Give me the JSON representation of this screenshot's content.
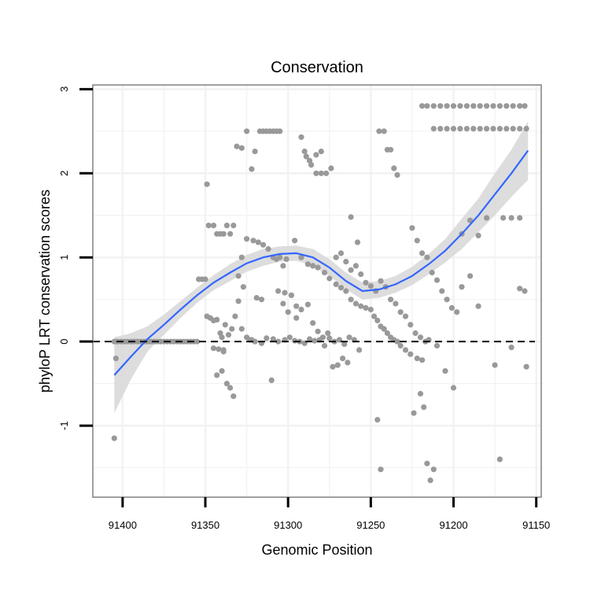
{
  "chart_data": {
    "type": "scatter",
    "title": "Conservation",
    "xlabel": "Genomic Position",
    "ylabel": "phyloP LRT conservation scores",
    "xlim": [
      91418,
      91147
    ],
    "ylim": [
      -1.85,
      3.05
    ],
    "x_reversed": true,
    "x_ticks": [
      91400,
      91350,
      91300,
      91250,
      91200,
      91150
    ],
    "x_tick_labels": [
      "91400",
      "91350",
      "91300",
      "91250",
      "91200",
      "91150"
    ],
    "y_ticks": [
      -1,
      0,
      1,
      2,
      3
    ],
    "y_tick_labels": [
      "-1",
      "0",
      "1",
      "2",
      "3"
    ],
    "grid": true,
    "reference_line": {
      "y": 0,
      "style": "dashed"
    },
    "colors": {
      "points": "#999999",
      "smooth": "#3366ff",
      "ribbon": "#d9d9d9",
      "grid": "#f2f2f2",
      "panel_border": "#808080"
    },
    "series": [
      {
        "type": "scatter",
        "x": [
          91405,
          91404,
          91403,
          91401,
          91399,
          91397,
          91395,
          91393,
          91391,
          91389,
          91387,
          91385,
          91383,
          91381,
          91379,
          91377,
          91375,
          91373,
          91371,
          91369,
          91367,
          91365,
          91363,
          91361,
          91359,
          91357,
          91355,
          91404,
          91405,
          91354,
          91352,
          91350,
          91349,
          91349,
          91347,
          91345,
          91343,
          91341,
          91339,
          91348,
          91345,
          91343,
          91341,
          91339,
          91337,
          91335,
          91333,
          91330,
          91328,
          91345,
          91342,
          91339,
          91343,
          91340,
          91337,
          91335,
          91333,
          91338,
          91340,
          91336,
          91334,
          91332,
          91330,
          91327,
          91331,
          91328,
          91325,
          91322,
          91320,
          91317,
          91315,
          91313,
          91311,
          91309,
          91307,
          91305,
          91325,
          91321,
          91318,
          91315,
          91312,
          91309,
          91307,
          91305,
          91303,
          91301,
          91328,
          91325,
          91322,
          91319,
          91316,
          91303,
          91300,
          91298,
          91295,
          91323,
          91320,
          91316,
          91313,
          91309,
          91306,
          91302,
          91299,
          91296,
          91293,
          91290,
          91287,
          91284,
          91281,
          91278,
          91275,
          91272,
          91269,
          91266,
          91263,
          91260,
          91257,
          91310,
          91306,
          91302,
          91298,
          91295,
          91292,
          91288,
          91285,
          91282,
          91279,
          91276,
          91273,
          91270,
          91267,
          91264,
          91292,
          91289,
          91286,
          91283,
          91280,
          91277,
          91274,
          91271,
          91268,
          91265,
          91262,
          91259,
          91256,
          91253,
          91250,
          91247,
          91244,
          91241,
          91238,
          91235,
          91232,
          91229,
          91226,
          91223,
          91220,
          91217,
          91296,
          91292,
          91288,
          91285,
          91282,
          91278,
          91275,
          91271,
          91268,
          91265,
          91262,
          91259,
          91256,
          91253,
          91250,
          91248,
          91246,
          91244,
          91242,
          91240,
          91238,
          91236,
          91234,
          91232,
          91229,
          91226,
          91222,
          91219,
          91290,
          91287,
          91283,
          91280,
          91245,
          91242,
          91240,
          91238,
          91236,
          91234,
          91225,
          91222,
          91219,
          91216,
          91213,
          91210,
          91207,
          91204,
          91201,
          91198,
          91219,
          91216,
          91212,
          91208,
          91204,
          91200,
          91196,
          91192,
          91188,
          91184,
          91180,
          91176,
          91172,
          91168,
          91164,
          91160,
          91157,
          91212,
          91208,
          91204,
          91200,
          91196,
          91192,
          91188,
          91184,
          91180,
          91176,
          91172,
          91168,
          91164,
          91160,
          91156,
          91195,
          91190,
          91185,
          91180,
          91170,
          91165,
          91160,
          91157,
          91215,
          91210,
          91205,
          91200,
          91195,
          91190,
          91185,
          91175,
          91165,
          91160,
          91156,
          91224,
          91220,
          91218,
          91216,
          91214,
          91212,
          91246,
          91244,
          91172,
          91258,
          91262
        ],
        "y": [
          0,
          0,
          0,
          0,
          0,
          0,
          0,
          0,
          0,
          0,
          0,
          0,
          0,
          0,
          0,
          0,
          0,
          0,
          0,
          0,
          0,
          0,
          0,
          0,
          0,
          0,
          0,
          -0.2,
          -1.15,
          0.74,
          0.74,
          0.74,
          1.87,
          0.3,
          0.28,
          0.25,
          0.26,
          0.1,
          -0.1,
          1.38,
          1.38,
          1.28,
          1.28,
          1.28,
          1.38,
          1.28,
          1.38,
          0.78,
          1.0,
          -0.08,
          -0.09,
          -0.12,
          -0.4,
          -0.35,
          -0.5,
          -0.55,
          -0.65,
          0.2,
          0.05,
          0.08,
          0.15,
          0.3,
          0.48,
          0.65,
          2.32,
          2.3,
          2.5,
          2.05,
          2.26,
          2.5,
          2.5,
          2.5,
          2.5,
          2.5,
          2.5,
          2.5,
          1.22,
          1.2,
          1.18,
          1.15,
          1.1,
          1.0,
          0.98,
          1.0,
          0.9,
          0.98,
          0.15,
          0.05,
          0.02,
          0.52,
          0.5,
          0.45,
          0.35,
          0.55,
          0.28,
          0.02,
          0.0,
          -0.02,
          0.04,
          0.03,
          0.0,
          0.02,
          0.05,
          0.01,
          0.0,
          -0.02,
          0.03,
          0.01,
          0.02,
          -0.05,
          0.04,
          0.0,
          0.02,
          -0.03,
          0.05,
          0.02,
          -0.1,
          -0.46,
          0.6,
          0.58,
          0.55,
          0.42,
          0.38,
          0.44,
          0.22,
          0.12,
          0.05,
          0.1,
          -0.3,
          -0.28,
          -0.2,
          -0.25,
          2.43,
          2.2,
          2.1,
          2.0,
          2.0,
          2.0,
          2.06,
          1.0,
          1.05,
          0.95,
          0.85,
          0.9,
          0.8,
          0.7,
          0.66,
          0.6,
          0.72,
          0.65,
          0.5,
          0.45,
          0.35,
          0.3,
          0.2,
          0.1,
          0.05,
          0.0,
          1.2,
          1.0,
          0.92,
          0.9,
          0.88,
          0.82,
          0.75,
          0.68,
          0.64,
          0.6,
          0.5,
          0.45,
          0.42,
          0.4,
          0.38,
          0.3,
          0.25,
          0.18,
          0.15,
          0.1,
          0.05,
          0.02,
          0.0,
          -0.05,
          -0.1,
          -0.15,
          -0.2,
          -0.22,
          2.26,
          2.15,
          2.22,
          2.26,
          2.5,
          2.5,
          2.28,
          2.28,
          2.06,
          1.98,
          1.35,
          1.2,
          1.05,
          1.0,
          0.82,
          0.73,
          0.6,
          0.5,
          0.4,
          0.35,
          2.8,
          2.8,
          2.8,
          2.8,
          2.8,
          2.8,
          2.8,
          2.8,
          2.8,
          2.8,
          2.8,
          2.8,
          2.8,
          2.8,
          2.8,
          2.8,
          2.8,
          2.53,
          2.53,
          2.53,
          2.53,
          2.53,
          2.53,
          2.53,
          2.53,
          2.53,
          2.53,
          2.53,
          2.53,
          2.53,
          2.53,
          2.53,
          1.28,
          1.44,
          1.26,
          1.47,
          1.47,
          1.47,
          1.47,
          0.6,
          0.02,
          -0.05,
          -0.35,
          -0.55,
          0.65,
          0.78,
          0.42,
          -0.28,
          -0.07,
          0.63,
          -0.3,
          -0.85,
          -0.62,
          -0.78,
          -1.45,
          -1.65,
          -1.52,
          -0.93,
          -1.52,
          -1.4,
          1.18,
          1.48
        ]
      },
      {
        "type": "line",
        "name": "loess",
        "x": [
          91405,
          91395,
          91385,
          91375,
          91365,
          91355,
          91345,
          91335,
          91325,
          91315,
          91305,
          91295,
          91285,
          91275,
          91265,
          91255,
          91245,
          91235,
          91225,
          91215,
          91205,
          91195,
          91185,
          91175,
          91165,
          91155
        ],
        "y": [
          -0.4,
          -0.18,
          0.03,
          0.2,
          0.38,
          0.55,
          0.7,
          0.82,
          0.93,
          1.0,
          1.04,
          1.05,
          1.0,
          0.88,
          0.72,
          0.6,
          0.62,
          0.68,
          0.78,
          0.92,
          1.08,
          1.28,
          1.5,
          1.75,
          2.0,
          2.27
        ],
        "lower": [
          -0.85,
          -0.45,
          -0.12,
          0.08,
          0.28,
          0.46,
          0.61,
          0.72,
          0.83,
          0.9,
          0.95,
          0.96,
          0.9,
          0.78,
          0.62,
          0.5,
          0.52,
          0.58,
          0.67,
          0.8,
          0.94,
          1.1,
          1.3,
          1.5,
          1.72,
          1.92
        ],
        "upper": [
          0.05,
          0.1,
          0.18,
          0.32,
          0.48,
          0.64,
          0.79,
          0.92,
          1.03,
          1.1,
          1.13,
          1.14,
          1.1,
          0.98,
          0.82,
          0.7,
          0.72,
          0.78,
          0.89,
          1.04,
          1.22,
          1.46,
          1.7,
          2.0,
          2.28,
          2.62
        ]
      }
    ]
  }
}
